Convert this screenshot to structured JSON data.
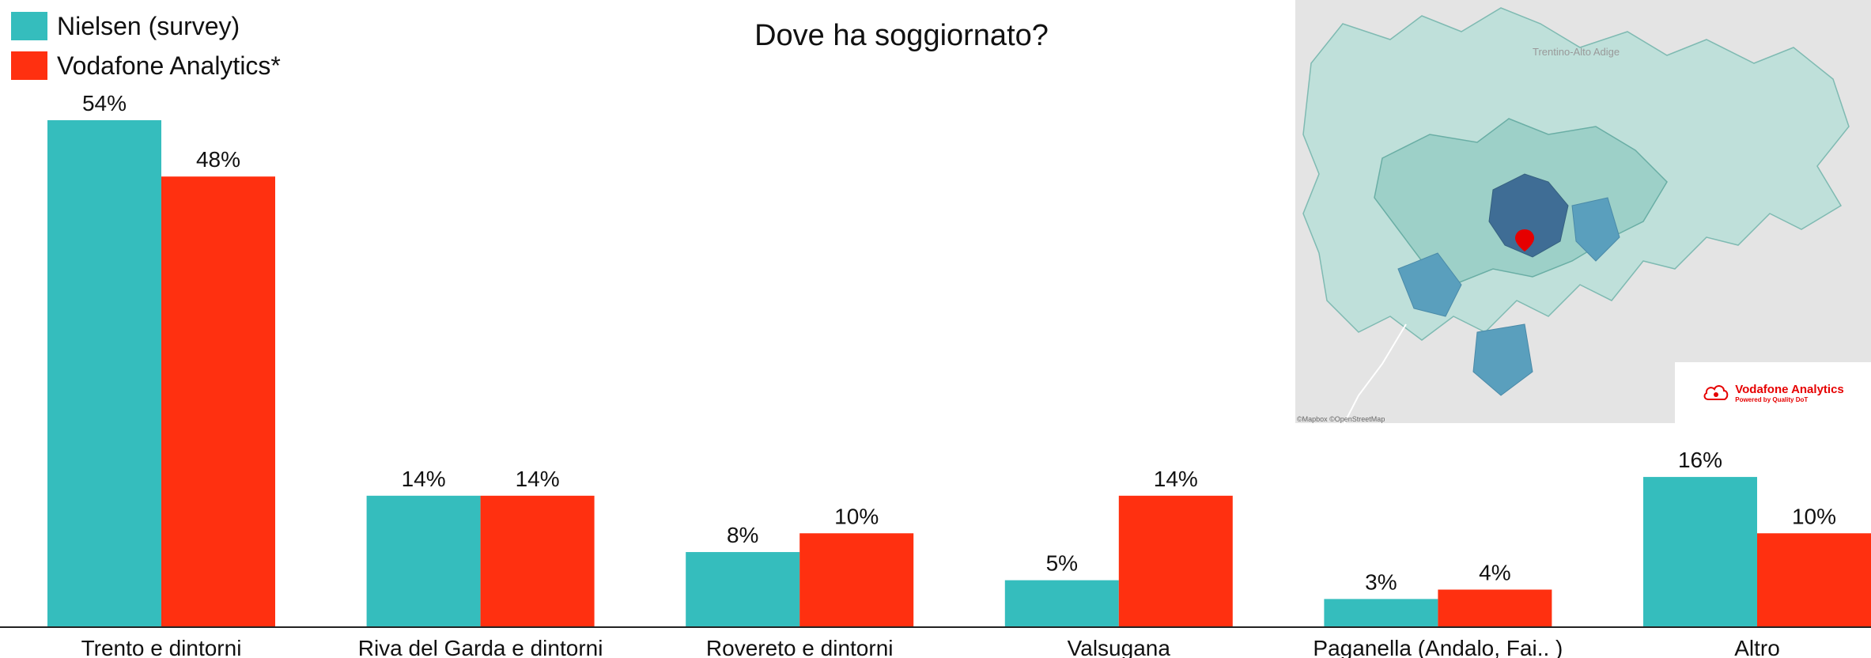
{
  "legend": {
    "items": [
      {
        "label": "Nielsen (survey)",
        "color": "#35bdbd"
      },
      {
        "label": "Vodafone Analytics*",
        "color": "#ff3010"
      }
    ]
  },
  "map": {
    "region_label": "Trentino-Alto Adige",
    "credit": "©Mapbox ©OpenStreetMap",
    "marker_color": "#e60000"
  },
  "brand": {
    "name": "Vodafone Analytics",
    "sub": "Powered by Quality DoT"
  },
  "chart_data": {
    "type": "bar",
    "title": "Dove ha soggiornato?",
    "categories": [
      "Trento e dintorni",
      "Riva del Garda e dintorni",
      "Rovereto e dintorni",
      "Valsugana",
      "Paganella (Andalo, Fai.. )",
      "Altro"
    ],
    "series": [
      {
        "name": "Nielsen (survey)",
        "values": [
          54,
          14,
          8,
          5,
          3,
          16
        ],
        "color": "#35bdbd"
      },
      {
        "name": "Vodafone Analytics*",
        "values": [
          48,
          14,
          10,
          14,
          4,
          10
        ],
        "color": "#ff3010"
      }
    ],
    "value_suffix": "%",
    "ylim": [
      0,
      54
    ],
    "grid": false,
    "legend_position": "top-left"
  }
}
